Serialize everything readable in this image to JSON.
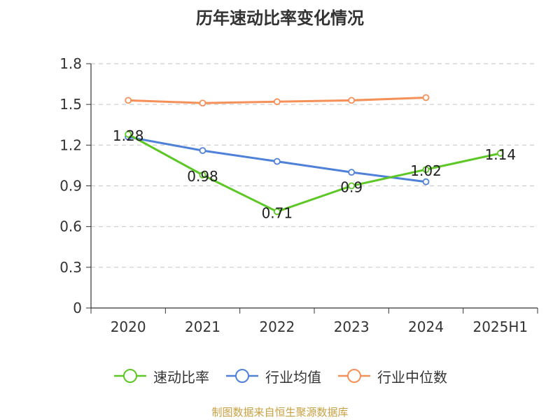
{
  "title": "历年速动比率变化情况",
  "source_text": "制图数据来自恒生聚源数据库",
  "colors": {
    "速动比率": "#5cc725",
    "行业均值": "#4f81d9",
    "行业中位数": "#f59158",
    "grid": "#cccccc",
    "axis": "#333333"
  },
  "chart_data": {
    "type": "line",
    "title": "历年速动比率变化情况",
    "xlabel": "",
    "ylabel": "",
    "categories": [
      "2020",
      "2021",
      "2022",
      "2023",
      "2024",
      "2025H1"
    ],
    "ylim": [
      0,
      1.8
    ],
    "yticks": [
      "0",
      "0.3",
      "0.6",
      "0.9",
      "1.2",
      "1.5",
      "1.8"
    ],
    "grid": true,
    "legend_position": "bottom",
    "series": [
      {
        "name": "速动比率",
        "values": [
          1.28,
          0.98,
          0.71,
          0.9,
          1.02,
          1.14
        ],
        "labels": [
          "1.28",
          "0.98",
          "0.71",
          "0.9",
          "1.02",
          "1.14"
        ]
      },
      {
        "name": "行业均值",
        "values": [
          1.26,
          1.16,
          1.08,
          1.0,
          0.93,
          null
        ]
      },
      {
        "name": "行业中位数",
        "values": [
          1.53,
          1.51,
          1.52,
          1.53,
          1.55,
          null
        ]
      }
    ]
  }
}
